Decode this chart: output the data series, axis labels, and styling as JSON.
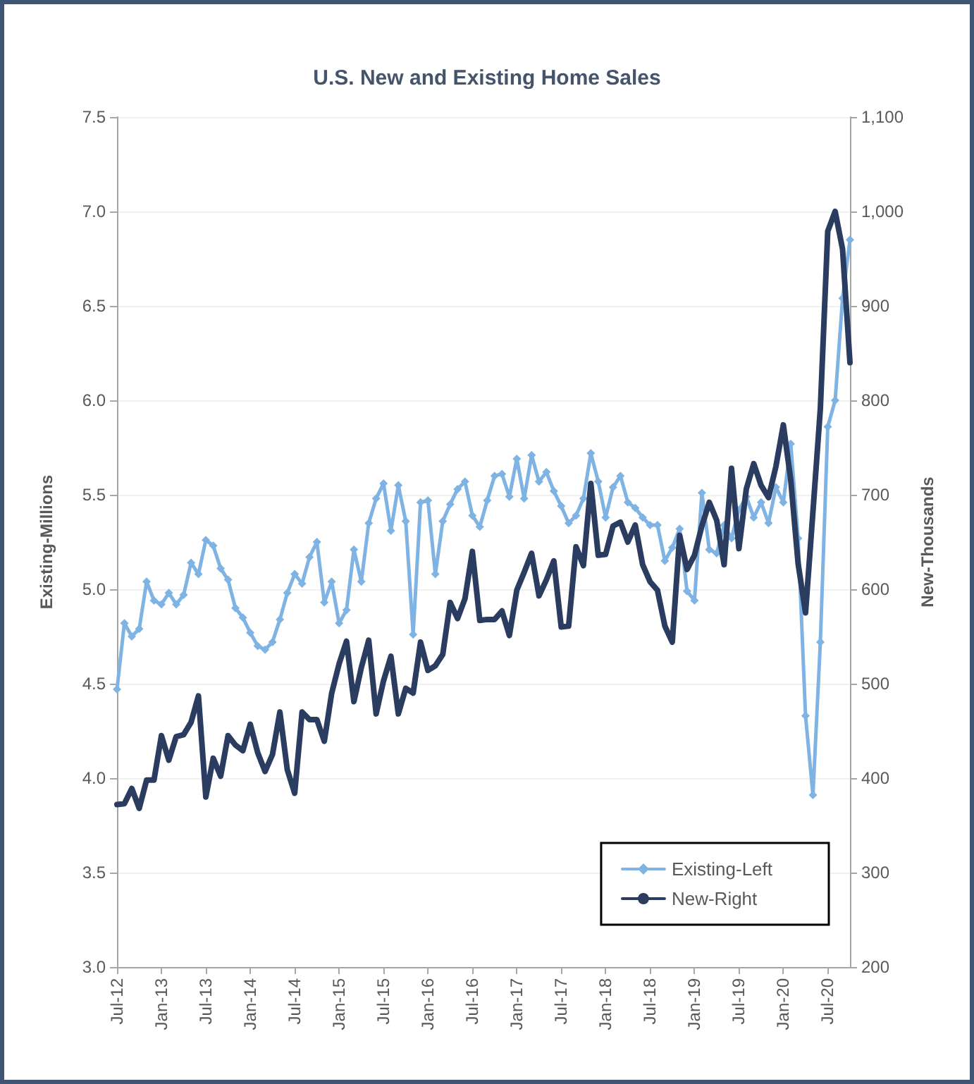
{
  "chart_data": {
    "type": "line",
    "title": "U.S. New and Existing Home Sales",
    "ylabel": "Existing-Millions",
    "y2label": "New-Thousands",
    "categories": [
      "Jul-12",
      null,
      null,
      null,
      null,
      null,
      "Jan-13",
      null,
      null,
      null,
      null,
      null,
      "Jul-13",
      null,
      null,
      null,
      null,
      null,
      "Jan-14",
      null,
      null,
      null,
      null,
      null,
      "Jul-14",
      null,
      null,
      null,
      null,
      null,
      "Jan-15",
      null,
      null,
      null,
      null,
      null,
      "Jul-15",
      null,
      null,
      null,
      null,
      null,
      "Jan-16",
      null,
      null,
      null,
      null,
      null,
      "Jul-16",
      null,
      null,
      null,
      null,
      null,
      "Jan-17",
      null,
      null,
      null,
      null,
      null,
      "Jul-17",
      null,
      null,
      null,
      null,
      null,
      "Jan-18",
      null,
      null,
      null,
      null,
      null,
      "Jul-18",
      null,
      null,
      null,
      null,
      null,
      "Jan-19",
      null,
      null,
      null,
      null,
      null,
      "Jul-19",
      null,
      null,
      null,
      null,
      null,
      "Jan-20",
      null,
      null,
      null,
      null,
      null,
      "Jul-20",
      null,
      null,
      null
    ],
    "series": [
      {
        "name": "Existing-Left",
        "color": "#7fb3e3",
        "marker": "diamond",
        "values": [
          4.47,
          4.82,
          4.75,
          4.79,
          5.04,
          4.94,
          4.92,
          4.98,
          4.92,
          4.97,
          5.14,
          5.08,
          5.26,
          5.23,
          5.11,
          5.05,
          4.9,
          4.85,
          4.77,
          4.7,
          4.68,
          4.72,
          4.84,
          4.98,
          5.08,
          5.03,
          5.17,
          5.25,
          4.93,
          5.04,
          4.82,
          4.89,
          5.21,
          5.04,
          5.35,
          5.48,
          5.56,
          5.31,
          5.55,
          5.36,
          4.76,
          5.46,
          5.47,
          5.08,
          5.36,
          5.45,
          5.53,
          5.57,
          5.39,
          5.33,
          5.47,
          5.6,
          5.61,
          5.49,
          5.69,
          5.48,
          5.71,
          5.57,
          5.62,
          5.52,
          5.44,
          5.35,
          5.39,
          5.48,
          5.72,
          5.57,
          5.38,
          5.54,
          5.6,
          5.46,
          5.43,
          5.38,
          5.34,
          5.34,
          5.15,
          5.22,
          5.32,
          4.99,
          4.94,
          5.51,
          5.21,
          5.19,
          5.34,
          5.27,
          5.42,
          5.49,
          5.38,
          5.46,
          5.35,
          5.54,
          5.46,
          5.77,
          5.27,
          4.33,
          3.91,
          4.72,
          5.86,
          6.0,
          6.54,
          6.85
        ]
      },
      {
        "name": "New-Right",
        "color": "#2a3c5f",
        "axis": "y2",
        "marker": "none",
        "values": [
          372,
          373,
          389,
          368,
          398,
          398,
          445,
          419,
          444,
          446,
          459,
          487,
          380,
          421,
          402,
          445,
          435,
          429,
          457,
          427,
          407,
          425,
          470,
          409,
          384,
          470,
          462,
          462,
          439,
          490,
          521,
          545,
          481,
          517,
          546,
          468,
          503,
          529,
          468,
          495,
          490,
          544,
          514,
          519,
          531,
          586,
          569,
          590,
          640,
          567,
          568,
          568,
          577,
          551,
          599,
          618,
          638,
          593,
          610,
          630,
          560,
          561,
          645,
          625,
          712,
          636,
          637,
          667,
          671,
          650,
          668,
          626,
          608,
          599,
          561,
          544,
          657,
          621,
          636,
          667,
          692,
          673,
          626,
          728,
          643,
          706,
          733,
          710,
          697,
          730,
          774,
          716,
          627,
          575,
          682,
          791,
          979,
          1000,
          960,
          840
        ]
      }
    ],
    "ylim": [
      3,
      7.5
    ],
    "yticks": [
      {
        "value": 3,
        "label": "3.0"
      },
      3.5,
      {
        "value": 4,
        "label": "4.0"
      },
      4.5,
      {
        "value": 5,
        "label": "5.0"
      },
      5.5,
      {
        "value": 6,
        "label": "6.0"
      },
      6.5,
      {
        "value": 7,
        "label": "7.0"
      },
      7.5
    ],
    "y2lim": [
      200,
      1100
    ],
    "y2ticks": [
      200,
      300,
      400,
      500,
      600,
      700,
      800,
      900,
      {
        "value": 1000,
        "label": "1,000"
      },
      {
        "value": 1100,
        "label": "1,100"
      }
    ],
    "grid": "y",
    "legend": "bottom right",
    "line_style": "solid"
  }
}
